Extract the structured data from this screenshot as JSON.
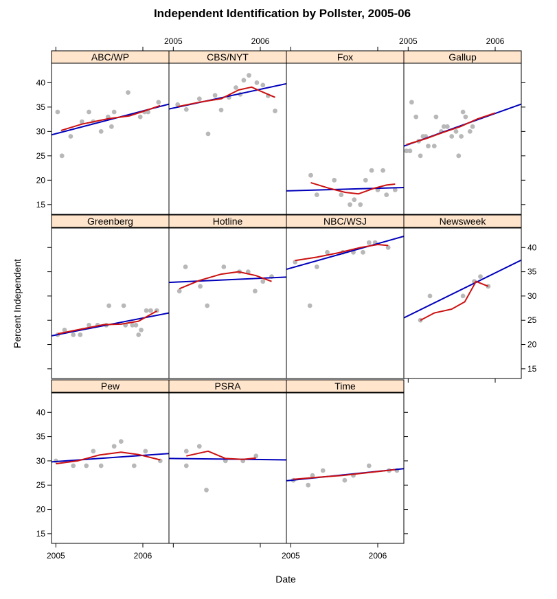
{
  "chart_data": {
    "type": "scatter",
    "title": "Independent Identification by Pollster, 2005-06",
    "xlabel": "Date",
    "ylabel": "Percent Independent",
    "xlim": [
      2004.95,
      2006.3
    ],
    "ylim": [
      13,
      44
    ],
    "x_ticks": [
      2005,
      2006
    ],
    "x_tick_labels": [
      "2005",
      "2006"
    ],
    "y_ticks": [
      15,
      20,
      25,
      30,
      35,
      40
    ],
    "y_tick_labels": [
      "15",
      "20",
      "25",
      "30",
      "35",
      "40"
    ],
    "colors": {
      "strip": "#ffe5cc",
      "points": "#b8b8b8",
      "linear_fit": "#0000bb",
      "loess": "#cc1111",
      "frame": "#000000"
    },
    "panels": [
      {
        "name": "ABC/WP",
        "points": [
          [
            2005.02,
            34
          ],
          [
            2005.07,
            25
          ],
          [
            2005.17,
            29
          ],
          [
            2005.3,
            32
          ],
          [
            2005.38,
            34
          ],
          [
            2005.43,
            32
          ],
          [
            2005.52,
            30
          ],
          [
            2005.6,
            33
          ],
          [
            2005.64,
            31
          ],
          [
            2005.67,
            34
          ],
          [
            2005.83,
            38
          ],
          [
            2005.97,
            33
          ],
          [
            2006.02,
            34
          ],
          [
            2006.06,
            34
          ],
          [
            2006.18,
            36
          ]
        ],
        "linear": [
          [
            2004.95,
            29.3
          ],
          [
            2006.3,
            35.6
          ]
        ],
        "loess": [
          [
            2005.06,
            30.2
          ],
          [
            2005.3,
            31.5
          ],
          [
            2005.6,
            32.6
          ],
          [
            2005.85,
            33.2
          ],
          [
            2006.02,
            34.2
          ],
          [
            2006.2,
            35.3
          ]
        ]
      },
      {
        "name": "CBS/NYT",
        "points": [
          [
            2005.05,
            35.5
          ],
          [
            2005.15,
            34.5
          ],
          [
            2005.3,
            36.7
          ],
          [
            2005.4,
            29.5
          ],
          [
            2005.48,
            37.4
          ],
          [
            2005.55,
            34.4
          ],
          [
            2005.64,
            37
          ],
          [
            2005.72,
            39
          ],
          [
            2005.77,
            37.6
          ],
          [
            2005.81,
            40.5
          ],
          [
            2005.87,
            41.5
          ],
          [
            2005.96,
            40
          ],
          [
            2006.03,
            39.5
          ],
          [
            2006.09,
            37.3
          ],
          [
            2006.17,
            34.2
          ]
        ],
        "linear": [
          [
            2004.95,
            34.6
          ],
          [
            2006.3,
            39.8
          ]
        ],
        "loess": [
          [
            2005.05,
            35.1
          ],
          [
            2005.3,
            36
          ],
          [
            2005.55,
            36.7
          ],
          [
            2005.75,
            38.5
          ],
          [
            2005.9,
            39.1
          ],
          [
            2006.0,
            38.3
          ],
          [
            2006.17,
            37
          ]
        ]
      },
      {
        "name": "Fox",
        "points": [
          [
            2005.23,
            21
          ],
          [
            2005.3,
            17
          ],
          [
            2005.5,
            20
          ],
          [
            2005.58,
            17
          ],
          [
            2005.68,
            15
          ],
          [
            2005.73,
            16
          ],
          [
            2005.8,
            15
          ],
          [
            2005.86,
            20
          ],
          [
            2005.93,
            22
          ],
          [
            2006.0,
            18
          ],
          [
            2006.06,
            22
          ],
          [
            2006.1,
            17
          ],
          [
            2006.2,
            18
          ]
        ],
        "linear": [
          [
            2004.95,
            17.8
          ],
          [
            2006.3,
            18.5
          ]
        ],
        "loess": [
          [
            2005.23,
            19.5
          ],
          [
            2005.45,
            18.3
          ],
          [
            2005.63,
            17.5
          ],
          [
            2005.78,
            17.2
          ],
          [
            2005.95,
            18.3
          ],
          [
            2006.1,
            19
          ],
          [
            2006.2,
            19.2
          ]
        ]
      },
      {
        "name": "Gallup",
        "points": [
          [
            2005.04,
            36
          ],
          [
            2005.09,
            33
          ],
          [
            2005.12,
            28
          ],
          [
            2005.14,
            25
          ],
          [
            2005.17,
            29
          ],
          [
            2005.23,
            27
          ],
          [
            2005.3,
            27
          ],
          [
            2005.32,
            33
          ],
          [
            2005.38,
            30
          ],
          [
            2005.41,
            31
          ],
          [
            2005.45,
            31
          ],
          [
            2005.5,
            29
          ],
          [
            2005.55,
            30
          ],
          [
            2005.58,
            25
          ],
          [
            2005.61,
            29
          ],
          [
            2005.63,
            34
          ],
          [
            2005.66,
            33
          ],
          [
            2005.71,
            30
          ],
          [
            2005.74,
            31
          ],
          [
            2004.98,
            26
          ],
          [
            2005.02,
            26
          ],
          [
            2005.2,
            29
          ]
        ],
        "linear": [
          [
            2004.95,
            27
          ],
          [
            2006.3,
            35.6
          ]
        ],
        "loess": [
          [
            2004.98,
            27.3
          ],
          [
            2005.2,
            28.5
          ],
          [
            2005.4,
            29.8
          ],
          [
            2005.6,
            31
          ],
          [
            2005.8,
            32.6
          ],
          [
            2006.0,
            33.8
          ]
        ]
      },
      {
        "name": "Greenberg",
        "points": [
          [
            2005.02,
            22
          ],
          [
            2005.1,
            23
          ],
          [
            2005.2,
            22
          ],
          [
            2005.28,
            22
          ],
          [
            2005.38,
            24
          ],
          [
            2005.48,
            24
          ],
          [
            2005.58,
            24
          ],
          [
            2005.61,
            28
          ],
          [
            2005.78,
            28
          ],
          [
            2005.8,
            24
          ],
          [
            2005.88,
            24
          ],
          [
            2005.92,
            24
          ],
          [
            2005.95,
            22
          ],
          [
            2005.98,
            23
          ],
          [
            2006.04,
            27
          ],
          [
            2006.09,
            27
          ],
          [
            2006.16,
            27
          ]
        ],
        "linear": [
          [
            2004.95,
            21.8
          ],
          [
            2006.3,
            26.5
          ]
        ],
        "loess": [
          [
            2005.02,
            22.2
          ],
          [
            2005.3,
            23.2
          ],
          [
            2005.55,
            24.1
          ],
          [
            2005.75,
            24.2
          ],
          [
            2005.95,
            24.8
          ],
          [
            2006.16,
            26.9
          ]
        ]
      },
      {
        "name": "Hotline",
        "points": [
          [
            2005.07,
            31
          ],
          [
            2005.14,
            36
          ],
          [
            2005.31,
            32
          ],
          [
            2005.39,
            28
          ],
          [
            2005.58,
            36
          ],
          [
            2005.76,
            35
          ],
          [
            2005.86,
            35
          ],
          [
            2005.94,
            31
          ],
          [
            2006.03,
            33
          ],
          [
            2006.13,
            34
          ]
        ],
        "linear": [
          [
            2004.95,
            32.8
          ],
          [
            2006.3,
            33.9
          ]
        ],
        "loess": [
          [
            2005.07,
            31.5
          ],
          [
            2005.3,
            33.2
          ],
          [
            2005.55,
            34.5
          ],
          [
            2005.75,
            35
          ],
          [
            2005.95,
            34.2
          ],
          [
            2006.13,
            33
          ]
        ]
      },
      {
        "name": "NBC/WSJ",
        "points": [
          [
            2005.05,
            37
          ],
          [
            2005.22,
            28
          ],
          [
            2005.3,
            36
          ],
          [
            2005.42,
            39
          ],
          [
            2005.6,
            39
          ],
          [
            2005.72,
            39
          ],
          [
            2005.83,
            39
          ],
          [
            2005.9,
            41
          ],
          [
            2005.97,
            41
          ],
          [
            2006.12,
            40
          ]
        ],
        "linear": [
          [
            2004.95,
            35.5
          ],
          [
            2006.3,
            42.3
          ]
        ],
        "loess": [
          [
            2005.05,
            37.3
          ],
          [
            2005.3,
            38
          ],
          [
            2005.55,
            38.9
          ],
          [
            2005.8,
            40
          ],
          [
            2006.0,
            40.6
          ],
          [
            2006.12,
            40.4
          ]
        ]
      },
      {
        "name": "Newsweek",
        "points": [
          [
            2005.14,
            25
          ],
          [
            2005.25,
            30
          ],
          [
            2005.63,
            30
          ],
          [
            2005.76,
            33
          ],
          [
            2005.83,
            34
          ],
          [
            2005.92,
            32
          ]
        ],
        "linear": [
          [
            2004.95,
            25.5
          ],
          [
            2006.3,
            37.4
          ]
        ],
        "loess": [
          [
            2005.14,
            25
          ],
          [
            2005.3,
            26.5
          ],
          [
            2005.5,
            27.3
          ],
          [
            2005.65,
            28.8
          ],
          [
            2005.78,
            33
          ],
          [
            2005.92,
            32
          ]
        ]
      },
      {
        "name": "Pew",
        "points": [
          [
            2005.0,
            30
          ],
          [
            2005.2,
            29
          ],
          [
            2005.35,
            29
          ],
          [
            2005.43,
            32
          ],
          [
            2005.52,
            29
          ],
          [
            2005.67,
            33
          ],
          [
            2005.75,
            34
          ],
          [
            2005.9,
            29
          ],
          [
            2006.03,
            32
          ],
          [
            2006.2,
            30
          ]
        ],
        "linear": [
          [
            2004.95,
            29.8
          ],
          [
            2006.3,
            31.5
          ]
        ],
        "loess": [
          [
            2005.0,
            29.4
          ],
          [
            2005.25,
            30
          ],
          [
            2005.5,
            31.2
          ],
          [
            2005.75,
            31.8
          ],
          [
            2005.95,
            31.3
          ],
          [
            2006.2,
            30.2
          ]
        ]
      },
      {
        "name": "PSRA",
        "points": [
          [
            2005.15,
            29
          ],
          [
            2005.15,
            32
          ],
          [
            2005.3,
            33
          ],
          [
            2005.38,
            24
          ],
          [
            2005.6,
            30
          ],
          [
            2005.8,
            30
          ],
          [
            2005.95,
            31
          ]
        ],
        "linear": [
          [
            2004.95,
            30.5
          ],
          [
            2006.3,
            30.2
          ]
        ],
        "loess": [
          [
            2005.15,
            31
          ],
          [
            2005.4,
            32
          ],
          [
            2005.6,
            30.5
          ],
          [
            2005.8,
            30.3
          ],
          [
            2005.95,
            30.6
          ]
        ]
      },
      {
        "name": "Time",
        "points": [
          [
            2005.03,
            26
          ],
          [
            2005.2,
            25
          ],
          [
            2005.25,
            27
          ],
          [
            2005.37,
            28
          ],
          [
            2005.62,
            26
          ],
          [
            2005.72,
            27
          ],
          [
            2005.9,
            29
          ],
          [
            2006.13,
            28
          ],
          [
            2006.22,
            28
          ]
        ],
        "linear": [
          [
            2004.95,
            25.9
          ],
          [
            2006.3,
            28.4
          ]
        ],
        "loess": [
          [
            2005.03,
            26.2
          ],
          [
            2005.3,
            26.6
          ],
          [
            2005.6,
            27
          ],
          [
            2005.9,
            27.6
          ],
          [
            2006.2,
            28.2
          ]
        ]
      }
    ]
  }
}
